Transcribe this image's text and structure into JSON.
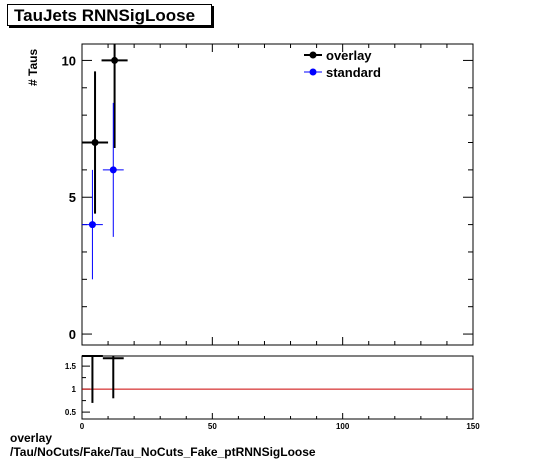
{
  "title": "TauJets RNNSigLoose",
  "footer": {
    "label": "overlay",
    "path": "/Tau/NoCuts/Fake/Tau_NoCuts_Fake_ptRNNSigLoose"
  },
  "chart_data": [
    {
      "type": "scatter",
      "panel": "main",
      "ylabel": "# Taus",
      "xlim": [
        0,
        150
      ],
      "ylim": [
        -0.4,
        10.6
      ],
      "yticks": [
        0,
        5,
        10
      ],
      "legend": {
        "placement": "top-right"
      },
      "series": [
        {
          "name": "overlay",
          "color": "#000000",
          "points": [
            {
              "x": 5,
              "xerr": 5,
              "y": 7,
              "yerr_low": 2.6,
              "yerr_high": 2.6
            },
            {
              "x": 12.5,
              "xerr": 5,
              "y": 10,
              "yerr_low": 3.2,
              "yerr_high": 3.2
            }
          ]
        },
        {
          "name": "standard",
          "color": "#0000ff",
          "points": [
            {
              "x": 4,
              "xerr": 4,
              "y": 4,
              "yerr_low": 2.0,
              "yerr_high": 2.0
            },
            {
              "x": 12,
              "xerr": 4,
              "y": 6,
              "yerr_low": 2.45,
              "yerr_high": 2.45
            }
          ]
        }
      ]
    },
    {
      "type": "scatter",
      "panel": "ratio",
      "xlim": [
        0,
        150
      ],
      "ylim": [
        0.35,
        1.72
      ],
      "xticks": [
        0,
        50,
        100,
        150
      ],
      "yticks": [
        0.5,
        1,
        1.5
      ],
      "ytick_labels": [
        "0.5",
        "1",
        "1.5"
      ],
      "reference_line": {
        "y": 1,
        "color": "#cc0000"
      },
      "series": [
        {
          "name": "",
          "color": "#000000",
          "points": [
            {
              "x": 4,
              "xerr": 4,
              "y": 1.75,
              "yerr_low": 1.05,
              "yerr_high": 0.6
            },
            {
              "x": 12,
              "xerr": 4,
              "y": 1.67,
              "yerr_low": 0.87,
              "yerr_high": 0.6
            }
          ]
        }
      ]
    }
  ]
}
